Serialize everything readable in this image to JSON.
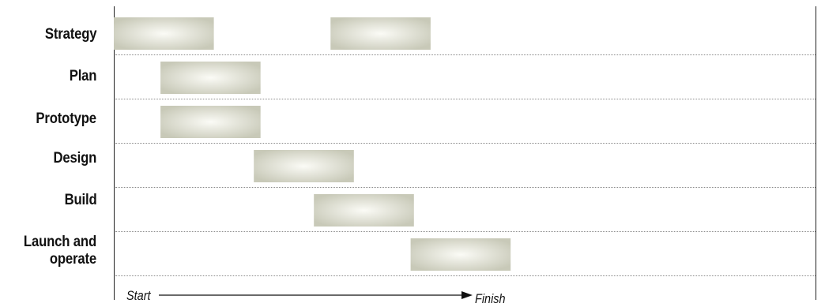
{
  "rows": [
    {
      "label": "Strategy"
    },
    {
      "label": "Plan"
    },
    {
      "label": "Prototype"
    },
    {
      "label": "Design"
    },
    {
      "label": "Build"
    },
    {
      "label": "Launch and operate"
    }
  ],
  "axis": {
    "start": "Start",
    "end": "Finish"
  },
  "colors": {
    "bar_center": "#fbfbf6",
    "bar_edge": "#c8c9b8",
    "gridline": "#8a8a8a",
    "frame": "#222222"
  },
  "chart_data": {
    "type": "gantt",
    "tasks": [
      {
        "name": "Strategy",
        "segments": [
          [
            0,
            0.3
          ],
          [
            0.65,
            0.95
          ]
        ]
      },
      {
        "name": "Plan",
        "segments": [
          [
            0.14,
            0.44
          ]
        ]
      },
      {
        "name": "Prototype",
        "segments": [
          [
            0.14,
            0.44
          ]
        ]
      },
      {
        "name": "Design",
        "segments": [
          [
            0.42,
            0.72
          ]
        ]
      },
      {
        "name": "Build",
        "segments": [
          [
            0.6,
            0.9
          ]
        ]
      },
      {
        "name": "Launch and operate",
        "segments": [
          [
            0.89,
            1.19
          ]
        ]
      }
    ],
    "xlabel_start": "Start",
    "xlabel_end": "Finish",
    "time_unit": "relative"
  }
}
